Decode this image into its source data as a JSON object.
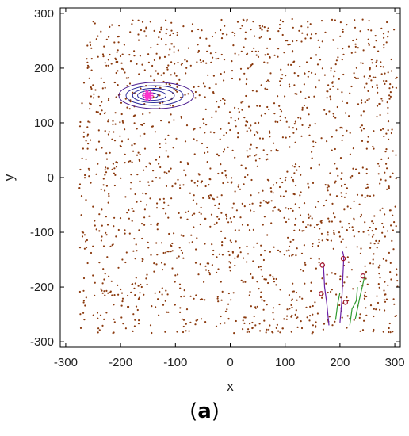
{
  "caption": {
    "open": "(",
    "letter": "a",
    "close": ")"
  },
  "chart_data": {
    "type": "scatter",
    "title": "",
    "xlabel": "x",
    "ylabel": "y",
    "xlim": [
      -310,
      310
    ],
    "ylim": [
      -310,
      310
    ],
    "xticks": [
      -300,
      -200,
      -100,
      0,
      100,
      200,
      300
    ],
    "yticks": [
      -300,
      -200,
      -100,
      0,
      100,
      200,
      300
    ],
    "grid": false,
    "legend": "none",
    "colors": {
      "points": "#8b3a0e",
      "contour_outer": "#4b1b8f",
      "contour_inner": "#2a2a9a",
      "source": "#ff33cc",
      "track_purple": "#6a1fa6",
      "track_green": "#2e9a2e",
      "marker": "#a0102a"
    },
    "scatter": {
      "description_count": 1800,
      "x_range": [
        -275,
        305
      ],
      "y_range": [
        -285,
        290
      ]
    },
    "source": {
      "x": -150,
      "y": 150
    },
    "contours": [
      {
        "cx": -135,
        "cy": 150,
        "rx": 68,
        "ry": 24
      },
      {
        "cx": -138,
        "cy": 150,
        "rx": 52,
        "ry": 18
      },
      {
        "cx": -140,
        "cy": 150,
        "rx": 38,
        "ry": 13
      },
      {
        "cx": -143,
        "cy": 150,
        "rx": 26,
        "ry": 9
      },
      {
        "cx": -146,
        "cy": 150,
        "rx": 14,
        "ry": 5
      }
    ],
    "tracks": [
      {
        "color": "purple",
        "points": [
          [
            180,
            -270
          ],
          [
            176,
            -230
          ],
          [
            172,
            -200
          ],
          [
            170,
            -160
          ]
        ]
      },
      {
        "color": "purple",
        "points": [
          [
            200,
            -265
          ],
          [
            203,
            -230
          ],
          [
            205,
            -190
          ],
          [
            207,
            -145
          ],
          [
            205,
            -135
          ]
        ]
      },
      {
        "color": "green",
        "points": [
          [
            218,
            -270
          ],
          [
            222,
            -240
          ],
          [
            230,
            -225
          ],
          [
            232,
            -200
          ]
        ]
      },
      {
        "color": "green",
        "points": [
          [
            192,
            -260
          ],
          [
            196,
            -230
          ],
          [
            200,
            -210
          ]
        ]
      },
      {
        "color": "green",
        "points": [
          [
            228,
            -258
          ],
          [
            236,
            -220
          ],
          [
            244,
            -185
          ],
          [
            246,
            -175
          ]
        ]
      }
    ],
    "markers": [
      {
        "x": 168,
        "y": -160
      },
      {
        "x": 206,
        "y": -148
      },
      {
        "x": 166,
        "y": -212
      },
      {
        "x": 210,
        "y": -228
      },
      {
        "x": 242,
        "y": -180
      }
    ]
  }
}
